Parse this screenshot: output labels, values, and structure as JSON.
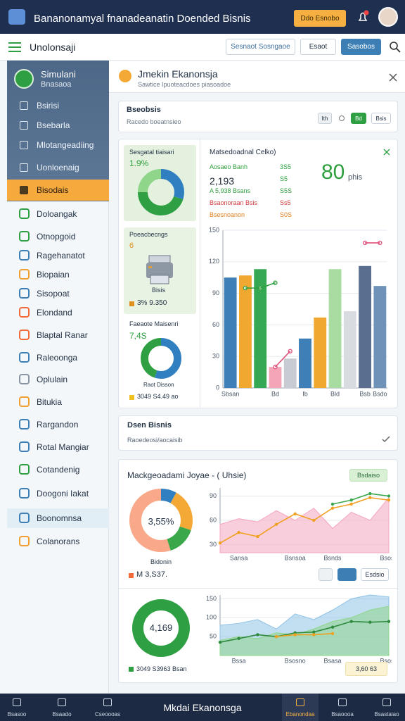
{
  "header": {
    "title": "Bananonamyal fnanadeanatin Doended Bisnis",
    "button": "Ddo Esnobo"
  },
  "toolbar": {
    "title": "Unolonsaji",
    "buttons": [
      "Sesnaot Sosngaoe",
      "Esaot",
      "Sasobos"
    ]
  },
  "sidebar": {
    "brand": "Simulani",
    "brand_sub": "Bnasaoa",
    "nav": [
      "Bsirisi",
      "Bsebarla",
      "Mlotangeadiing",
      "Uonloenaig",
      "Bisodais"
    ],
    "items": [
      "Doloangak",
      "Otnopgoid",
      "Ragehanatot",
      "Biopaian",
      "Sisopoat",
      "Elondand",
      "Blaptal Ranar",
      "Raleoonga",
      "Oplulain",
      "Bitukia",
      "Rargandon",
      "Rotal Mangiar",
      "Cotandenig",
      "Doogoni Iakat",
      "Boonomnsa",
      "Colanorans"
    ]
  },
  "panel": {
    "title": "Jmekin Ekanonsja",
    "subtitle": "Sawtice Ipuoteacdoes piasoadoe"
  },
  "filter_card": {
    "title": "Bseobsis",
    "subtitle": "Racedo boeatnsieo",
    "buttons": [
      "Ith",
      "Bd",
      "Bsis"
    ]
  },
  "tiles": [
    {
      "title": "Sesgatal tiaisari",
      "value": "1.9%"
    },
    {
      "title": "Poeacbecngs",
      "value": "6",
      "caption": "Bisis",
      "footer": "3% 9.350"
    },
    {
      "title": "Faeaote Maisenri",
      "value": "7,4S",
      "caption": "Raot Disson",
      "footer": "3049 S4.49 ao"
    }
  ],
  "summary": {
    "title": "Matsedoadnal Celko)",
    "rows": [
      {
        "label": "Aosaeo Banh",
        "value": "3S5"
      },
      {
        "label": "2,193",
        "value": "S5"
      },
      {
        "label": "A 5,938 Bsans",
        "value": "S5S"
      },
      {
        "label": "Bsaonoraan Bsis",
        "value": "Ss5"
      },
      {
        "label": "Bsesnoanon",
        "value": "S0S"
      }
    ],
    "big_value": "80",
    "big_unit": "phis"
  },
  "notice_card": {
    "title": "Dsen Bisnis",
    "subtitle": "Raoedeosi/aocaisib"
  },
  "analysis_card": {
    "title": "Mackgeoadami Joyae - ( Uhsie)",
    "badge": "Bsdaiso",
    "donut_label": "3,55%",
    "donut_caption": "Bidonin",
    "donut_footer": "M 3,S37.",
    "button": "Esdsio",
    "ring_label": "4,169",
    "ring_footer": "3049 S3963 Bsan",
    "chip": "3,60 63"
  },
  "bottom_nav": {
    "items": [
      "Bsasoo",
      "Bsaado",
      "Cseoooas",
      "Ebanondaa",
      "Bsaoooa",
      "Bsastaiao"
    ],
    "center": "Mkdai Ekanonsga"
  },
  "chart_data": [
    {
      "type": "bar",
      "categories": [
        "Sbsan",
        null,
        null,
        "Bd",
        null,
        "Ib",
        null,
        "Bld",
        null,
        "Bsb",
        "Bsdo"
      ],
      "values": [
        105,
        107,
        113,
        20,
        28,
        47,
        67,
        113,
        73,
        116,
        97
      ],
      "colors": [
        "#3f7fb8",
        "#f0a830",
        "#34a853",
        "#f4a6b8",
        "#c8ccd2",
        "#3f7fb8",
        "#f0a830",
        "#a8dca0",
        "#d8dce0",
        "#5a6f8f",
        "#6f93b8"
      ],
      "ylim": [
        0,
        150
      ],
      "yticks": [
        0,
        30,
        60,
        90,
        120,
        150
      ],
      "grid": true,
      "lines": [
        {
          "color": "#2e9e3e",
          "values": [
            null,
            95,
            95,
            100,
            null,
            null,
            null,
            null,
            null,
            null,
            null
          ]
        },
        {
          "color": "#e0507a",
          "values": [
            null,
            null,
            null,
            20,
            35,
            null,
            null,
            null,
            null,
            138,
            138
          ]
        }
      ]
    },
    {
      "type": "line",
      "categories": [
        null,
        "Sansa",
        null,
        null,
        "Bsnsoa",
        null,
        "Bsnds",
        null,
        null,
        "Bsosa"
      ],
      "ylim": [
        20,
        100
      ],
      "yticks": [
        30,
        60,
        90
      ],
      "grid": true,
      "series": [
        {
          "color": "#f4a6c0",
          "area": true,
          "values": [
            55,
            62,
            58,
            72,
            60,
            75,
            50,
            70,
            60,
            88
          ]
        },
        {
          "color": "#f0a020",
          "values": [
            32,
            45,
            40,
            55,
            68,
            60,
            75,
            80,
            88,
            85
          ]
        },
        {
          "color": "#3aa84a",
          "values": [
            null,
            null,
            null,
            null,
            null,
            null,
            80,
            85,
            93,
            90
          ]
        }
      ]
    },
    {
      "type": "line",
      "categories": [
        null,
        "Bssa",
        null,
        null,
        "Bsosno",
        null,
        "Bsasa",
        null,
        null,
        "Bsosa"
      ],
      "ylim": [
        0,
        160
      ],
      "yticks": [
        50,
        100,
        150
      ],
      "grid": true,
      "series": [
        {
          "color": "#8fc3e6",
          "area": true,
          "values": [
            80,
            85,
            95,
            70,
            110,
            95,
            120,
            150,
            160,
            155
          ]
        },
        {
          "color": "#8fd68a",
          "area": true,
          "values": [
            40,
            50,
            45,
            60,
            55,
            70,
            90,
            100,
            120,
            130
          ]
        },
        {
          "color": "#2e8a3e",
          "values": [
            35,
            45,
            55,
            50,
            60,
            62,
            75,
            90,
            88,
            90
          ]
        },
        {
          "color": "#f0a020",
          "values": [
            null,
            null,
            null,
            50,
            55,
            55,
            58,
            null,
            null,
            null
          ]
        }
      ]
    },
    {
      "type": "pie",
      "values": [
        30,
        45,
        25
      ],
      "colors": [
        "#2f7fc1",
        "#2ea043",
        "#8fd68a"
      ]
    },
    {
      "type": "pie",
      "values": [
        55,
        45
      ],
      "colors": [
        "#2f7fc1",
        "#2ea043"
      ]
    },
    {
      "type": "pie",
      "values": [
        8,
        22,
        15,
        55
      ],
      "colors": [
        "#2f7fc1",
        "#f4a836",
        "#3aa84a",
        "#f9a88a"
      ]
    },
    {
      "type": "pie",
      "values": [
        100
      ],
      "colors": [
        "#2ea043"
      ]
    }
  ]
}
